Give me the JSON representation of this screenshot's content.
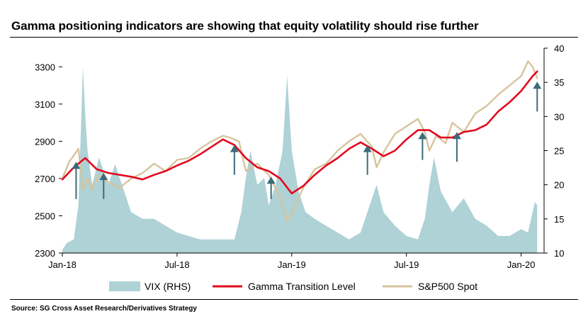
{
  "title": "Gamma positioning indicators are showing that equity volatility should rise further",
  "source": "Source: SG Cross Asset Research/Derivatives Strategy",
  "colors": {
    "vix": "#aed2d6",
    "gamma": "#e2091e",
    "spx": "#d6c49c",
    "arrow": "#3b6b7b",
    "axis": "#000000"
  },
  "chart_data": {
    "type": "line",
    "title": "Gamma positioning indicators are showing that equity volatility should rise further",
    "xlabel": "",
    "ylabel_left": "",
    "ylabel_right": "",
    "x_range": [
      2018.0,
      2020.1
    ],
    "ylim_left": [
      2300,
      3400
    ],
    "ylim_right": [
      10,
      40
    ],
    "x_ticks": [
      {
        "value": 2018.0,
        "label": "Jan-18"
      },
      {
        "value": 2018.5,
        "label": "Jul-18"
      },
      {
        "value": 2019.0,
        "label": "Jan-19"
      },
      {
        "value": 2019.5,
        "label": "Jul-19"
      },
      {
        "value": 2020.0,
        "label": "Jan-20"
      }
    ],
    "y_ticks_left": [
      2300,
      2500,
      2700,
      2900,
      3100,
      3300
    ],
    "y_ticks_right": [
      10,
      15,
      20,
      25,
      30,
      35,
      40
    ],
    "legend_position": "bottom",
    "series": [
      {
        "name": "VIX (RHS)",
        "axis": "right",
        "style": "area",
        "x": [
          2018.0,
          2018.02,
          2018.05,
          2018.07,
          2018.09,
          2018.1,
          2018.11,
          2018.13,
          2018.16,
          2018.2,
          2018.23,
          2018.26,
          2018.3,
          2018.35,
          2018.4,
          2018.45,
          2018.5,
          2018.55,
          2018.6,
          2018.65,
          2018.7,
          2018.75,
          2018.78,
          2018.8,
          2018.82,
          2018.85,
          2018.88,
          2018.9,
          2018.93,
          2018.96,
          2018.98,
          2019.0,
          2019.03,
          2019.06,
          2019.1,
          2019.15,
          2019.2,
          2019.25,
          2019.3,
          2019.35,
          2019.37,
          2019.4,
          2019.45,
          2019.5,
          2019.55,
          2019.58,
          2019.6,
          2019.62,
          2019.65,
          2019.7,
          2019.75,
          2019.8,
          2019.85,
          2019.9,
          2019.95,
          2020.0,
          2020.03,
          2020.06,
          2020.07
        ],
        "y": [
          10.5,
          11.5,
          12.0,
          17.0,
          37.3,
          30.0,
          25.0,
          20.0,
          24.0,
          20.0,
          23.0,
          20.0,
          16.0,
          15.0,
          15.0,
          14.0,
          13.0,
          12.5,
          12.0,
          12.0,
          12.0,
          12.0,
          16.0,
          21.0,
          25.0,
          20.0,
          21.0,
          17.0,
          20.0,
          25.0,
          36.0,
          25.0,
          19.0,
          16.0,
          15.0,
          14.0,
          13.0,
          12.0,
          13.0,
          18.0,
          20.0,
          16.0,
          14.0,
          12.5,
          12.0,
          15.0,
          20.0,
          24.0,
          19.0,
          16.0,
          18.0,
          15.0,
          14.0,
          12.5,
          12.5,
          13.5,
          13.0,
          17.5,
          17.0
        ]
      },
      {
        "name": "Gamma Transition Level",
        "axis": "left",
        "style": "line",
        "x": [
          2018.0,
          2018.05,
          2018.1,
          2018.15,
          2018.2,
          2018.25,
          2018.3,
          2018.35,
          2018.4,
          2018.45,
          2018.5,
          2018.55,
          2018.6,
          2018.65,
          2018.7,
          2018.75,
          2018.8,
          2018.85,
          2018.9,
          2018.95,
          2019.0,
          2019.05,
          2019.1,
          2019.15,
          2019.2,
          2019.25,
          2019.3,
          2019.35,
          2019.4,
          2019.45,
          2019.5,
          2019.55,
          2019.6,
          2019.65,
          2019.7,
          2019.75,
          2019.8,
          2019.85,
          2019.9,
          2019.95,
          2020.0,
          2020.05,
          2020.07
        ],
        "y": [
          2695,
          2760,
          2810,
          2750,
          2730,
          2720,
          2710,
          2695,
          2720,
          2740,
          2770,
          2795,
          2830,
          2870,
          2910,
          2880,
          2810,
          2760,
          2740,
          2700,
          2620,
          2660,
          2720,
          2770,
          2810,
          2860,
          2895,
          2860,
          2820,
          2850,
          2910,
          2960,
          2960,
          2920,
          2920,
          2950,
          2960,
          2990,
          3060,
          3110,
          3170,
          3250,
          3275
        ]
      },
      {
        "name": "S&P500 Spot",
        "axis": "left",
        "style": "line",
        "x": [
          2018.0,
          2018.03,
          2018.07,
          2018.09,
          2018.11,
          2018.13,
          2018.16,
          2018.2,
          2018.25,
          2018.3,
          2018.35,
          2018.4,
          2018.45,
          2018.5,
          2018.55,
          2018.6,
          2018.65,
          2018.7,
          2018.73,
          2018.77,
          2018.8,
          2018.85,
          2018.9,
          2018.95,
          2018.98,
          2019.0,
          2019.05,
          2019.1,
          2019.15,
          2019.2,
          2019.25,
          2019.3,
          2019.35,
          2019.37,
          2019.4,
          2019.45,
          2019.5,
          2019.55,
          2019.58,
          2019.6,
          2019.63,
          2019.67,
          2019.7,
          2019.75,
          2019.8,
          2019.85,
          2019.9,
          2019.95,
          2020.0,
          2020.03,
          2020.05,
          2020.07
        ],
        "y": [
          2700,
          2790,
          2860,
          2640,
          2700,
          2640,
          2720,
          2680,
          2650,
          2700,
          2730,
          2780,
          2740,
          2800,
          2810,
          2860,
          2900,
          2930,
          2920,
          2900,
          2740,
          2780,
          2720,
          2600,
          2470,
          2510,
          2650,
          2750,
          2780,
          2850,
          2900,
          2940,
          2870,
          2760,
          2840,
          2940,
          2980,
          3020,
          2950,
          2850,
          2930,
          2890,
          3000,
          2950,
          3050,
          3090,
          3150,
          3200,
          3250,
          3330,
          3300,
          3240
        ]
      }
    ],
    "arrows": [
      {
        "x": 2018.06,
        "y_from": 2590,
        "y_to": 2790
      },
      {
        "x": 2018.18,
        "y_from": 2590,
        "y_to": 2730
      },
      {
        "x": 2018.75,
        "y_from": 2720,
        "y_to": 2880
      },
      {
        "x": 2018.91,
        "y_from": 2590,
        "y_to": 2710
      },
      {
        "x": 2019.33,
        "y_from": 2720,
        "y_to": 2880
      },
      {
        "x": 2019.57,
        "y_from": 2800,
        "y_to": 2950
      },
      {
        "x": 2019.72,
        "y_from": 2790,
        "y_to": 2950
      },
      {
        "x": 2020.07,
        "y_from": 3060,
        "y_to": 3220
      }
    ]
  }
}
